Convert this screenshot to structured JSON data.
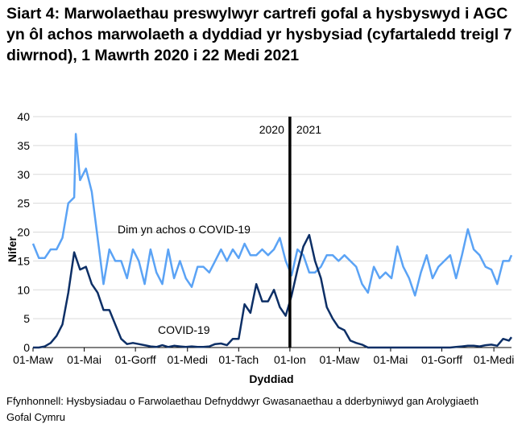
{
  "chart_data": {
    "type": "line",
    "title": "Siart 4: Marwolaethau preswylwyr cartrefi gofal a hysbyswyd i AGC yn ôl achos marwolaeth a dyddiad yr hysbysiad (cyfartaledd treigl 7 diwrnod), 1 Mawrth 2020 i 22 Medi 2021",
    "xlabel": "Dyddiad",
    "ylabel": "Nifer",
    "ylim": [
      0,
      40
    ],
    "yticks": [
      0,
      5,
      10,
      15,
      20,
      25,
      30,
      35,
      40
    ],
    "xlim": [
      "2020-03-01",
      "2021-09-22"
    ],
    "xticks": [
      {
        "date": "2020-03-01",
        "label": "01-Maw"
      },
      {
        "date": "2020-05-01",
        "label": "01-Mai"
      },
      {
        "date": "2020-07-01",
        "label": "01-Gorff"
      },
      {
        "date": "2020-09-01",
        "label": "01-Medi"
      },
      {
        "date": "2020-11-01",
        "label": "01-Tach"
      },
      {
        "date": "2021-01-01",
        "label": "01-Ion"
      },
      {
        "date": "2021-03-01",
        "label": "01-Maw"
      },
      {
        "date": "2021-05-01",
        "label": "01-Mai"
      },
      {
        "date": "2021-07-01",
        "label": "01-Gorff"
      },
      {
        "date": "2021-09-01",
        "label": "01-Medi"
      }
    ],
    "grid": "horizontal",
    "year_divider": {
      "date": "2021-01-01",
      "left_label": "2020",
      "right_label": "2021"
    },
    "series": [
      {
        "name": "Dim yn achos o COVID-19",
        "color": "#5ba3f5",
        "points": [
          [
            "2020-03-01",
            18
          ],
          [
            "2020-03-08",
            15.5
          ],
          [
            "2020-03-15",
            15.5
          ],
          [
            "2020-03-22",
            17
          ],
          [
            "2020-03-29",
            17
          ],
          [
            "2020-04-05",
            19
          ],
          [
            "2020-04-12",
            25
          ],
          [
            "2020-04-19",
            26
          ],
          [
            "2020-04-21",
            37
          ],
          [
            "2020-04-26",
            29
          ],
          [
            "2020-05-03",
            31
          ],
          [
            "2020-05-10",
            27
          ],
          [
            "2020-05-17",
            19
          ],
          [
            "2020-05-24",
            11
          ],
          [
            "2020-05-31",
            17
          ],
          [
            "2020-06-07",
            15
          ],
          [
            "2020-06-14",
            15
          ],
          [
            "2020-06-21",
            12
          ],
          [
            "2020-06-28",
            17
          ],
          [
            "2020-07-05",
            15
          ],
          [
            "2020-07-12",
            11
          ],
          [
            "2020-07-19",
            17
          ],
          [
            "2020-07-26",
            13
          ],
          [
            "2020-08-02",
            11
          ],
          [
            "2020-08-09",
            17
          ],
          [
            "2020-08-16",
            12
          ],
          [
            "2020-08-23",
            15
          ],
          [
            "2020-08-30",
            12
          ],
          [
            "2020-09-06",
            10.5
          ],
          [
            "2020-09-13",
            14
          ],
          [
            "2020-09-20",
            14
          ],
          [
            "2020-09-27",
            13
          ],
          [
            "2020-10-04",
            15
          ],
          [
            "2020-10-11",
            17
          ],
          [
            "2020-10-18",
            15
          ],
          [
            "2020-10-25",
            17
          ],
          [
            "2020-11-01",
            15.5
          ],
          [
            "2020-11-08",
            18
          ],
          [
            "2020-11-15",
            16
          ],
          [
            "2020-11-22",
            16
          ],
          [
            "2020-11-29",
            17
          ],
          [
            "2020-12-06",
            16
          ],
          [
            "2020-12-13",
            17
          ],
          [
            "2020-12-20",
            19
          ],
          [
            "2020-12-27",
            15
          ],
          [
            "2021-01-03",
            12.5
          ],
          [
            "2021-01-10",
            17
          ],
          [
            "2021-01-17",
            16
          ],
          [
            "2021-01-24",
            13
          ],
          [
            "2021-01-31",
            13
          ],
          [
            "2021-02-07",
            14
          ],
          [
            "2021-02-14",
            16
          ],
          [
            "2021-02-21",
            16
          ],
          [
            "2021-02-28",
            15
          ],
          [
            "2021-03-07",
            16
          ],
          [
            "2021-03-14",
            15
          ],
          [
            "2021-03-21",
            14
          ],
          [
            "2021-03-28",
            11
          ],
          [
            "2021-04-04",
            9.5
          ],
          [
            "2021-04-11",
            14
          ],
          [
            "2021-04-18",
            12
          ],
          [
            "2021-04-25",
            13
          ],
          [
            "2021-05-02",
            12
          ],
          [
            "2021-05-09",
            17.5
          ],
          [
            "2021-05-16",
            14
          ],
          [
            "2021-05-23",
            12
          ],
          [
            "2021-05-30",
            9
          ],
          [
            "2021-06-06",
            13
          ],
          [
            "2021-06-13",
            16
          ],
          [
            "2021-06-20",
            12
          ],
          [
            "2021-06-27",
            14
          ],
          [
            "2021-07-04",
            15
          ],
          [
            "2021-07-11",
            16
          ],
          [
            "2021-07-18",
            12
          ],
          [
            "2021-07-25",
            16
          ],
          [
            "2021-08-01",
            20.5
          ],
          [
            "2021-08-08",
            17
          ],
          [
            "2021-08-15",
            16
          ],
          [
            "2021-08-22",
            14
          ],
          [
            "2021-08-29",
            13.5
          ],
          [
            "2021-09-05",
            11
          ],
          [
            "2021-09-12",
            15
          ],
          [
            "2021-09-19",
            15
          ],
          [
            "2021-09-22",
            16
          ]
        ]
      },
      {
        "name": "COVID-19",
        "color": "#0d2f66",
        "points": [
          [
            "2020-03-01",
            0
          ],
          [
            "2020-03-08",
            0
          ],
          [
            "2020-03-15",
            0.2
          ],
          [
            "2020-03-22",
            0.8
          ],
          [
            "2020-03-29",
            2
          ],
          [
            "2020-04-05",
            4
          ],
          [
            "2020-04-12",
            9.5
          ],
          [
            "2020-04-19",
            16.5
          ],
          [
            "2020-04-26",
            13.5
          ],
          [
            "2020-05-03",
            14
          ],
          [
            "2020-05-10",
            11
          ],
          [
            "2020-05-17",
            9.5
          ],
          [
            "2020-05-24",
            6.5
          ],
          [
            "2020-05-31",
            6.5
          ],
          [
            "2020-06-07",
            4
          ],
          [
            "2020-06-14",
            1.5
          ],
          [
            "2020-06-21",
            0.6
          ],
          [
            "2020-06-28",
            0.8
          ],
          [
            "2020-07-05",
            0.6
          ],
          [
            "2020-07-12",
            0.4
          ],
          [
            "2020-07-19",
            0.2
          ],
          [
            "2020-07-26",
            0.1
          ],
          [
            "2020-08-02",
            0.4
          ],
          [
            "2020-08-09",
            0.1
          ],
          [
            "2020-08-16",
            0.3
          ],
          [
            "2020-08-23",
            0.2
          ],
          [
            "2020-08-30",
            0.1
          ],
          [
            "2020-09-06",
            0.2
          ],
          [
            "2020-09-13",
            0.1
          ],
          [
            "2020-09-20",
            0.1
          ],
          [
            "2020-09-27",
            0.2
          ],
          [
            "2020-10-04",
            0.6
          ],
          [
            "2020-10-11",
            0.7
          ],
          [
            "2020-10-18",
            0.4
          ],
          [
            "2020-10-25",
            1.5
          ],
          [
            "2020-11-01",
            1.5
          ],
          [
            "2020-11-08",
            7.5
          ],
          [
            "2020-11-15",
            6
          ],
          [
            "2020-11-22",
            11
          ],
          [
            "2020-11-29",
            8
          ],
          [
            "2020-12-06",
            8
          ],
          [
            "2020-12-13",
            10
          ],
          [
            "2020-12-20",
            7
          ],
          [
            "2020-12-27",
            5.5
          ],
          [
            "2021-01-03",
            9
          ],
          [
            "2021-01-10",
            13.5
          ],
          [
            "2021-01-17",
            17.5
          ],
          [
            "2021-01-24",
            19.5
          ],
          [
            "2021-01-31",
            15
          ],
          [
            "2021-02-07",
            12
          ],
          [
            "2021-02-14",
            7
          ],
          [
            "2021-02-21",
            5
          ],
          [
            "2021-02-28",
            3.5
          ],
          [
            "2021-03-07",
            3
          ],
          [
            "2021-03-14",
            1.2
          ],
          [
            "2021-03-21",
            0.8
          ],
          [
            "2021-03-28",
            0.5
          ],
          [
            "2021-04-04",
            0
          ],
          [
            "2021-05-01",
            0
          ],
          [
            "2021-06-01",
            0
          ],
          [
            "2021-07-11",
            0
          ],
          [
            "2021-07-18",
            0.1
          ],
          [
            "2021-07-25",
            0.2
          ],
          [
            "2021-08-01",
            0.3
          ],
          [
            "2021-08-08",
            0.3
          ],
          [
            "2021-08-15",
            0.2
          ],
          [
            "2021-08-22",
            0.4
          ],
          [
            "2021-08-29",
            0.5
          ],
          [
            "2021-09-05",
            0.3
          ],
          [
            "2021-09-12",
            1.5
          ],
          [
            "2021-09-19",
            1.2
          ],
          [
            "2021-09-22",
            1.8
          ]
        ]
      }
    ],
    "annotations": [
      "Dim yn achos o COVID-19",
      "COVID-19"
    ]
  },
  "source": "Ffynhonnell: Hysbysiadau o Farwolaethau Defnyddwyr Gwasanaethau a dderbyniwyd gan Arolygiaeth Gofal Cymru"
}
